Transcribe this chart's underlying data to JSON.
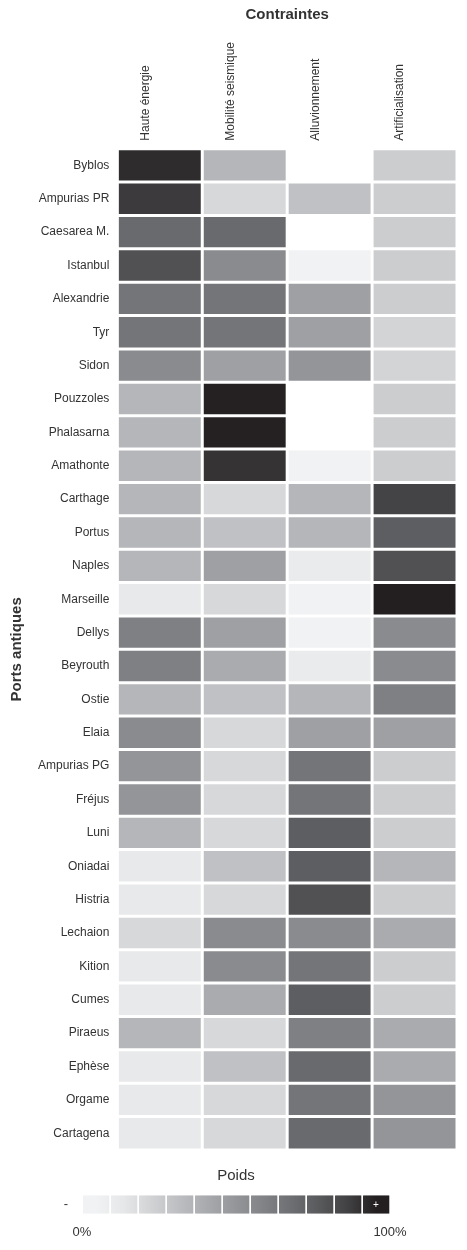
{
  "chart_data": {
    "type": "heatmap",
    "title": "Contraintes",
    "ylabel": "Ports antiques",
    "clabel": "Poids",
    "categories": [
      "Haute énergie",
      "Mobilité seismique",
      "Alluvionnement",
      "Artificialisation"
    ],
    "y_categories": [
      "Byblos",
      "Ampurias PR",
      "Caesarea M.",
      "Istanbul",
      "Alexandrie",
      "Tyr",
      "Sidon",
      "Pouzzoles",
      "Phalasarna",
      "Amathonte",
      "Carthage",
      "Portus",
      "Naples",
      "Marseille",
      "Dellys",
      "Beyrouth",
      "Ostie",
      "Elaia",
      "Ampurias PG",
      "Fréjus",
      "Luni",
      "Oniadai",
      "Histria",
      "Lechaion",
      "Kition",
      "Cumes",
      "Piraeus",
      "Ephèse",
      "Orgame",
      "Cartagena"
    ],
    "cells": [
      [
        92,
        35,
        null,
        25
      ],
      [
        88,
        20,
        30,
        25
      ],
      [
        70,
        70,
        null,
        25
      ],
      [
        80,
        55,
        2,
        25
      ],
      [
        65,
        65,
        45,
        25
      ],
      [
        65,
        65,
        45,
        22
      ],
      [
        55,
        45,
        50,
        22
      ],
      [
        35,
        95,
        null,
        25
      ],
      [
        35,
        95,
        null,
        25
      ],
      [
        35,
        90,
        2,
        25
      ],
      [
        35,
        20,
        35,
        85
      ],
      [
        35,
        30,
        35,
        75
      ],
      [
        35,
        45,
        10,
        80
      ],
      [
        12,
        20,
        2,
        100
      ],
      [
        60,
        45,
        2,
        55
      ],
      [
        60,
        40,
        10,
        55
      ],
      [
        35,
        30,
        35,
        60
      ],
      [
        55,
        20,
        45,
        45
      ],
      [
        50,
        20,
        65,
        25
      ],
      [
        50,
        20,
        65,
        25
      ],
      [
        35,
        20,
        75,
        25
      ],
      [
        12,
        30,
        75,
        35
      ],
      [
        12,
        20,
        80,
        25
      ],
      [
        20,
        55,
        55,
        40
      ],
      [
        12,
        55,
        65,
        25
      ],
      [
        12,
        40,
        75,
        25
      ],
      [
        35,
        20,
        60,
        40
      ],
      [
        12,
        30,
        70,
        40
      ],
      [
        12,
        20,
        65,
        50
      ],
      [
        12,
        20,
        70,
        50
      ]
    ],
    "clim": [
      0,
      100
    ],
    "cticks": [
      {
        "value": 0,
        "label": "0%"
      },
      {
        "value": 100,
        "label": "100%"
      }
    ],
    "annotations": [
      "-",
      "+"
    ]
  }
}
